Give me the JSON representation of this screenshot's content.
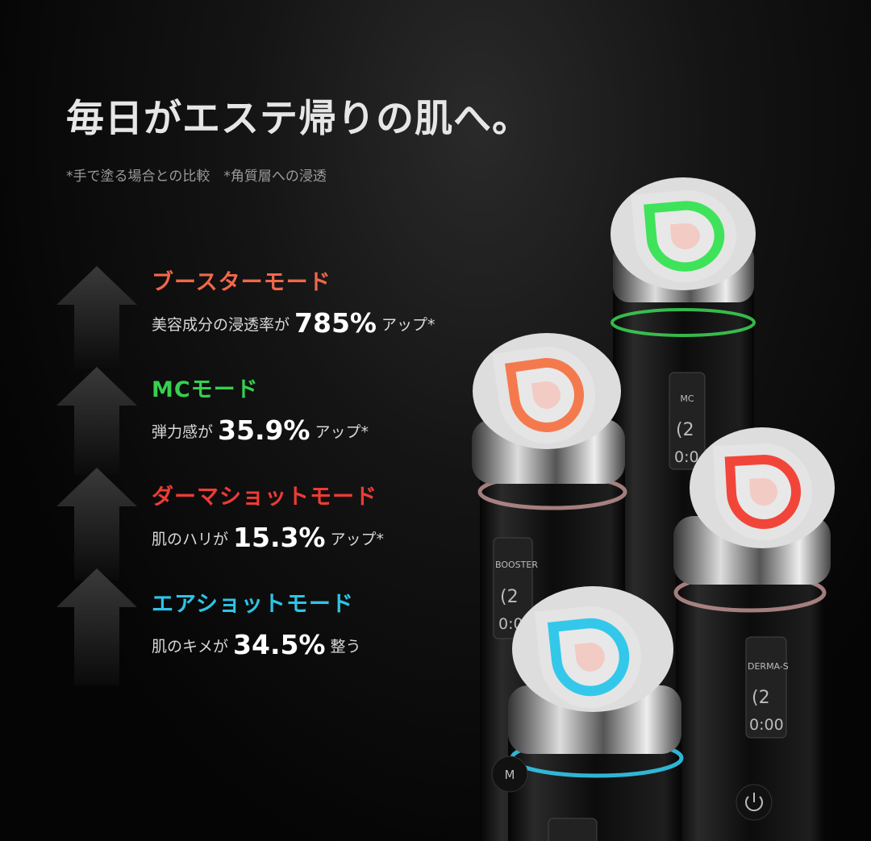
{
  "headline": "毎日がエステ帰りの肌へ。",
  "footnote": "*手で塗る場合との比較　*角質層への浸透",
  "modes": [
    {
      "title": "ブースターモード",
      "color": "#f0684a",
      "prefix": "美容成分の浸透率が",
      "value": "785%",
      "suffix": "アップ*"
    },
    {
      "title": "MCモード",
      "color": "#35d050",
      "prefix": "弾力感が",
      "value": "35.9%",
      "suffix": "アップ*"
    },
    {
      "title": "ダーマショットモード",
      "color": "#ee3b36",
      "prefix": "肌のハリが",
      "value": "15.3%",
      "suffix": "アップ*"
    },
    {
      "title": "エアショットモード",
      "color": "#2ec4e6",
      "prefix": "肌のキメが",
      "value": "34.5%",
      "suffix": "整う"
    }
  ],
  "devices": {
    "mc": {
      "screen_label": "MC",
      "level": "(2",
      "timer": "0:0",
      "color": "#3ee35a"
    },
    "booster": {
      "screen_label": "BOOSTER",
      "level": "(2",
      "timer": "0:0",
      "color": "#f47a4e"
    },
    "derma": {
      "screen_label": "DERMA-S",
      "level": "(2",
      "timer": "0:00",
      "color": "#f2453a"
    },
    "air": {
      "color": "#33c8ea",
      "button_label": "M"
    }
  }
}
